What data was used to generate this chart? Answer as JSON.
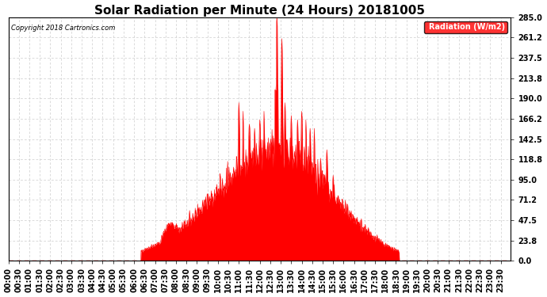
{
  "title": "Solar Radiation per Minute (24 Hours) 20181005",
  "copyright_text": "Copyright 2018 Cartronics.com",
  "legend_label": "Radiation (W/m2)",
  "y_ticks": [
    0.0,
    23.8,
    47.5,
    71.2,
    95.0,
    118.8,
    142.5,
    166.2,
    190.0,
    213.8,
    237.5,
    261.2,
    285.0
  ],
  "ylim": [
    0,
    285.0
  ],
  "fill_color": "#ff0000",
  "line_color": "#ff0000",
  "grid_color": "#cccccc",
  "bg_color": "#ffffff",
  "title_fontsize": 11,
  "tick_fontsize": 7,
  "legend_bg": "#ff0000",
  "legend_text_color": "#ffffff",
  "x_tick_interval_minutes": 30,
  "total_minutes": 1440
}
